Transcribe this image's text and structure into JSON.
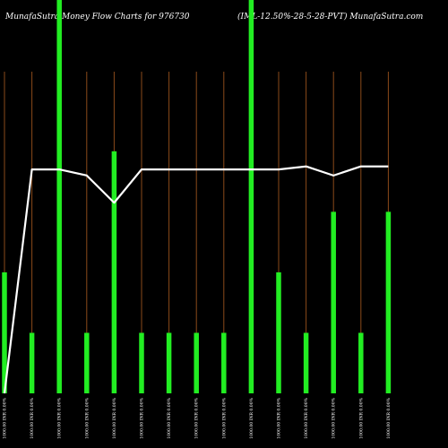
{
  "title_left": "MunafaSutra  Money Flow  Charts for 976730",
  "title_right": "(IML-12.50%-28-5-28-PVT) MunafaSutra.com",
  "chart_data": {
    "type": "bar",
    "categories": [
      "1000.00 INR 0.00%",
      "1000.00 INR 0.00%",
      "1000.00 INR 0.00%",
      "1000.00 INR 0.00%",
      "1000.00 INR 0.00%",
      "1000.00 INR 0.00%",
      "1000.00 INR 0.00%",
      "1000.00 INR 0.00%",
      "1000.00 INR 0.00%",
      "1000.00 INR 0.00%",
      "1000.00 INR 0.00%",
      "1000.00 INR 0.00%",
      "1000.00 INR 0.00%",
      "1000.00 INR 0.00%",
      "1000.00 INR 0.00%"
    ],
    "series": [
      {
        "values": [
          40,
          20,
          130,
          20,
          80,
          20,
          20,
          20,
          20,
          130,
          40,
          20,
          60,
          20,
          60
        ]
      },
      {
        "values": [
          0,
          74,
          74,
          72,
          63,
          74,
          74,
          74,
          74,
          74,
          74,
          75,
          72,
          75,
          75
        ]
      }
    ],
    "ylim": [
      0,
      130
    ],
    "grid": true,
    "colors": {
      "bars": "#22ee22",
      "line": "#ffffff",
      "grid": "#8a4a1a",
      "background": "#000000"
    }
  }
}
